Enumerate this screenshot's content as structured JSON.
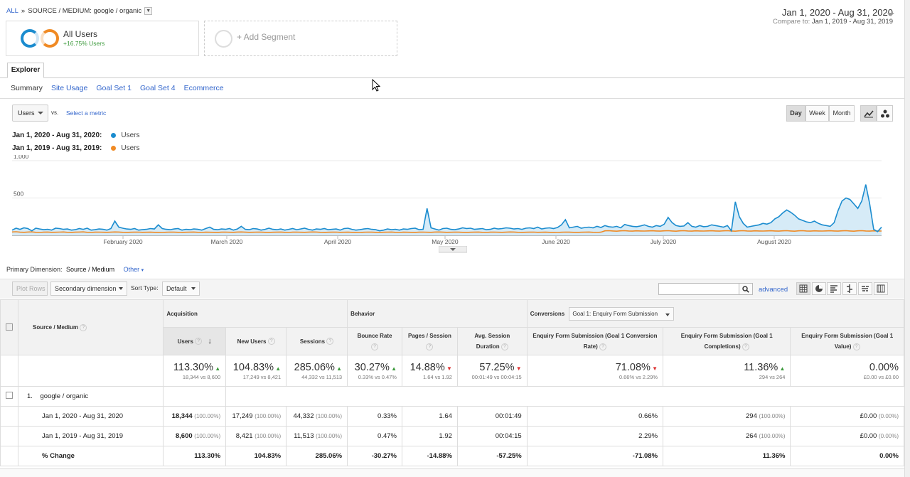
{
  "breadcrumb": {
    "all": "ALL",
    "sep": "»",
    "current": "SOURCE / MEDIUM: google / organic"
  },
  "daterange": {
    "main": "Jan 1, 2020 - Aug 31, 2020",
    "compare_label": "Compare to:",
    "compare": "Jan 1, 2019 - Aug 31, 2019"
  },
  "segments": {
    "active_title": "All Users",
    "active_sub": "+16.75% Users",
    "add": "+ Add Segment"
  },
  "tabs": {
    "explorer": "Explorer"
  },
  "subtabs": [
    "Summary",
    "Site Usage",
    "Goal Set 1",
    "Goal Set 4",
    "Ecommerce"
  ],
  "metric": {
    "selected": "Users",
    "vs": "vs.",
    "select": "Select a metric"
  },
  "granularity": {
    "day": "Day",
    "week": "Week",
    "month": "Month"
  },
  "legend": [
    {
      "range": "Jan 1, 2020 - Aug 31, 2020:",
      "series": "Users",
      "color": "#1b8ccf"
    },
    {
      "range": "Jan 1, 2019 - Aug 31, 2019:",
      "series": "Users",
      "color": "#f08a24"
    }
  ],
  "chart_data": {
    "type": "area",
    "ylim": [
      0,
      1000
    ],
    "y_ticks": [
      "1,000",
      "500"
    ],
    "x_ticks": [
      "February 2020",
      "March 2020",
      "April 2020",
      "May 2020",
      "June 2020",
      "July 2020",
      "August 2020"
    ],
    "series": [
      {
        "name": "Users",
        "color": "#1b8ccf",
        "values": [
          70,
          95,
          80,
          100,
          90,
          60,
          95,
          85,
          75,
          80,
          70,
          95,
          90,
          80,
          85,
          70,
          75,
          90,
          80,
          95,
          70,
          75,
          85,
          80,
          70,
          90,
          190,
          110,
          95,
          85,
          80,
          90,
          70,
          75,
          80,
          90,
          85,
          140,
          90,
          80,
          75,
          85,
          90,
          70,
          80,
          75,
          85,
          80,
          70,
          90,
          110,
          80,
          75,
          85,
          80,
          90,
          70,
          85,
          120,
          80,
          75,
          90,
          85,
          70,
          80,
          95,
          80,
          75,
          85,
          70,
          80,
          90,
          75,
          85,
          95,
          80,
          70,
          85,
          80,
          90,
          75,
          80,
          85,
          70,
          90,
          95,
          80,
          70,
          75,
          85,
          90,
          80,
          75,
          60,
          70,
          85,
          75,
          80,
          70,
          85,
          80,
          90,
          95,
          75,
          80,
          360,
          100,
          85,
          70,
          90,
          95,
          80,
          75,
          85,
          100,
          90,
          95,
          80,
          85,
          90,
          75,
          80,
          95,
          85,
          90,
          100,
          95,
          85,
          90,
          80,
          95,
          100,
          90,
          110,
          85,
          95,
          100,
          90,
          105,
          140,
          210,
          100,
          110,
          120,
          95,
          105,
          110,
          100,
          120,
          105,
          130,
          115,
          110,
          120,
          100,
          145,
          130,
          120,
          115,
          125,
          140,
          120,
          110,
          130,
          120,
          150,
          240,
          170,
          130,
          120,
          125,
          170,
          120,
          110,
          130,
          115,
          120,
          140,
          130,
          120,
          110,
          130,
          60,
          450,
          250,
          160,
          110,
          120,
          130,
          140,
          160,
          150,
          170,
          220,
          250,
          300,
          340,
          310,
          270,
          220,
          200,
          180,
          170,
          190,
          160,
          140,
          130,
          120,
          170,
          330,
          460,
          500,
          480,
          420,
          360,
          460,
          680,
          420,
          80,
          50,
          110
        ]
      },
      {
        "name": "Users",
        "color": "#f08a24",
        "values": [
          45,
          48,
          42,
          40,
          44,
          46,
          40,
          38,
          42,
          44,
          40,
          41,
          43,
          45,
          40,
          39,
          42,
          44,
          46,
          40,
          38,
          42,
          43,
          41,
          40,
          42,
          45,
          44,
          40,
          39,
          41,
          42,
          43,
          40,
          41,
          42,
          40,
          39,
          38,
          41,
          43,
          42,
          40,
          39,
          41,
          42,
          44,
          40,
          38,
          42,
          41,
          40,
          39,
          42,
          43,
          41,
          40,
          44,
          45,
          42,
          40,
          41,
          43,
          42,
          40,
          39,
          41,
          42,
          44,
          40,
          38,
          42,
          43,
          41,
          40,
          42,
          45,
          44,
          40,
          39,
          41,
          42,
          43,
          40,
          41,
          42,
          40,
          39,
          38,
          41,
          43,
          42,
          40,
          39,
          41,
          42,
          44,
          40,
          38,
          42,
          41,
          40,
          39,
          42,
          43,
          41,
          40,
          44,
          45,
          42,
          40,
          41,
          43,
          42,
          40,
          39,
          41,
          42,
          44,
          40,
          38,
          42,
          43,
          41,
          40,
          42,
          45,
          44,
          40,
          39,
          41,
          42,
          43,
          40,
          41,
          42,
          40,
          39,
          38,
          41,
          43,
          42,
          40,
          39,
          41,
          42,
          44,
          40,
          38,
          42,
          60,
          62,
          58,
          55,
          60,
          62,
          58,
          56,
          60,
          58,
          57,
          59,
          61,
          58,
          56,
          60,
          62,
          58,
          55,
          60,
          62,
          58,
          56,
          60,
          58,
          57,
          59,
          61,
          58,
          56,
          60,
          62,
          58,
          55,
          60,
          62,
          58,
          56,
          60,
          58,
          57,
          59,
          61,
          58,
          56,
          60,
          62,
          58,
          55,
          60,
          62,
          58,
          56,
          60,
          58,
          57,
          59,
          61,
          58,
          56,
          60,
          62,
          58,
          55,
          60,
          62,
          58,
          56,
          60,
          58,
          57,
          59,
          61,
          58,
          56,
          60,
          62,
          58,
          55,
          60,
          50,
          48,
          46
        ]
      }
    ]
  },
  "primary_dimension": {
    "label": "Primary Dimension:",
    "value": "Source / Medium",
    "other": "Other"
  },
  "toolbar": {
    "plot_rows": "Plot Rows",
    "secondary": "Secondary dimension",
    "sort_label": "Sort Type:",
    "sort_value": "Default",
    "advanced": "advanced"
  },
  "table": {
    "dim_header": "Source / Medium",
    "groups": {
      "acquisition": "Acquisition",
      "behavior": "Behavior",
      "conversions": "Conversions",
      "goal_select": "Goal 1: Enquiry Form Submission"
    },
    "columns": [
      "Users",
      "New Users",
      "Sessions",
      "Bounce Rate",
      "Pages / Session",
      "Avg. Session Duration",
      "Enquiry Form Submission (Goal 1 Conversion Rate)",
      "Enquiry Form Submission (Goal 1 Completions)",
      "Enquiry Form Submission (Goal 1 Value)"
    ],
    "totals": [
      {
        "big": "113.30%",
        "dir": "up",
        "sub": "18,344 vs 8,600"
      },
      {
        "big": "104.83%",
        "dir": "up",
        "sub": "17,249 vs 8,421"
      },
      {
        "big": "285.06%",
        "dir": "up",
        "sub": "44,332 vs 11,513"
      },
      {
        "big": "30.27%",
        "dir": "up",
        "sub": "0.33% vs 0.47%"
      },
      {
        "big": "14.88%",
        "dir": "down",
        "sub": "1.64 vs 1.92"
      },
      {
        "big": "57.25%",
        "dir": "down",
        "sub": "00:01:49 vs 00:04:15"
      },
      {
        "big": "71.08%",
        "dir": "down",
        "sub": "0.66% vs 2.29%"
      },
      {
        "big": "11.36%",
        "dir": "up",
        "sub": "294 vs 264"
      },
      {
        "big": "0.00%",
        "dir": "",
        "sub": "£0.00 vs £0.00"
      }
    ],
    "row_num": "1.",
    "row_name": "google / organic",
    "rows": [
      {
        "label": "Jan 1, 2020 - Aug 31, 2020",
        "cells": [
          [
            "18,344",
            "(100.00%)"
          ],
          [
            "17,249",
            "(100.00%)"
          ],
          [
            "44,332",
            "(100.00%)"
          ],
          [
            "0.33%",
            ""
          ],
          [
            "1.64",
            ""
          ],
          [
            "00:01:49",
            ""
          ],
          [
            "0.66%",
            ""
          ],
          [
            "294",
            "(100.00%)"
          ],
          [
            "£0.00",
            "(0.00%)"
          ]
        ]
      },
      {
        "label": "Jan 1, 2019 - Aug 31, 2019",
        "cells": [
          [
            "8,600",
            "(100.00%)"
          ],
          [
            "8,421",
            "(100.00%)"
          ],
          [
            "11,513",
            "(100.00%)"
          ],
          [
            "0.47%",
            ""
          ],
          [
            "1.92",
            ""
          ],
          [
            "00:04:15",
            ""
          ],
          [
            "2.29%",
            ""
          ],
          [
            "264",
            "(100.00%)"
          ],
          [
            "£0.00",
            "(0.00%)"
          ]
        ]
      },
      {
        "label": "% Change",
        "cells": [
          [
            "113.30%",
            ""
          ],
          [
            "104.83%",
            ""
          ],
          [
            "285.06%",
            ""
          ],
          [
            "-30.27%",
            ""
          ],
          [
            "-14.88%",
            ""
          ],
          [
            "-57.25%",
            ""
          ],
          [
            "-71.08%",
            ""
          ],
          [
            "11.36%",
            ""
          ],
          [
            "0.00%",
            ""
          ]
        ]
      }
    ]
  }
}
